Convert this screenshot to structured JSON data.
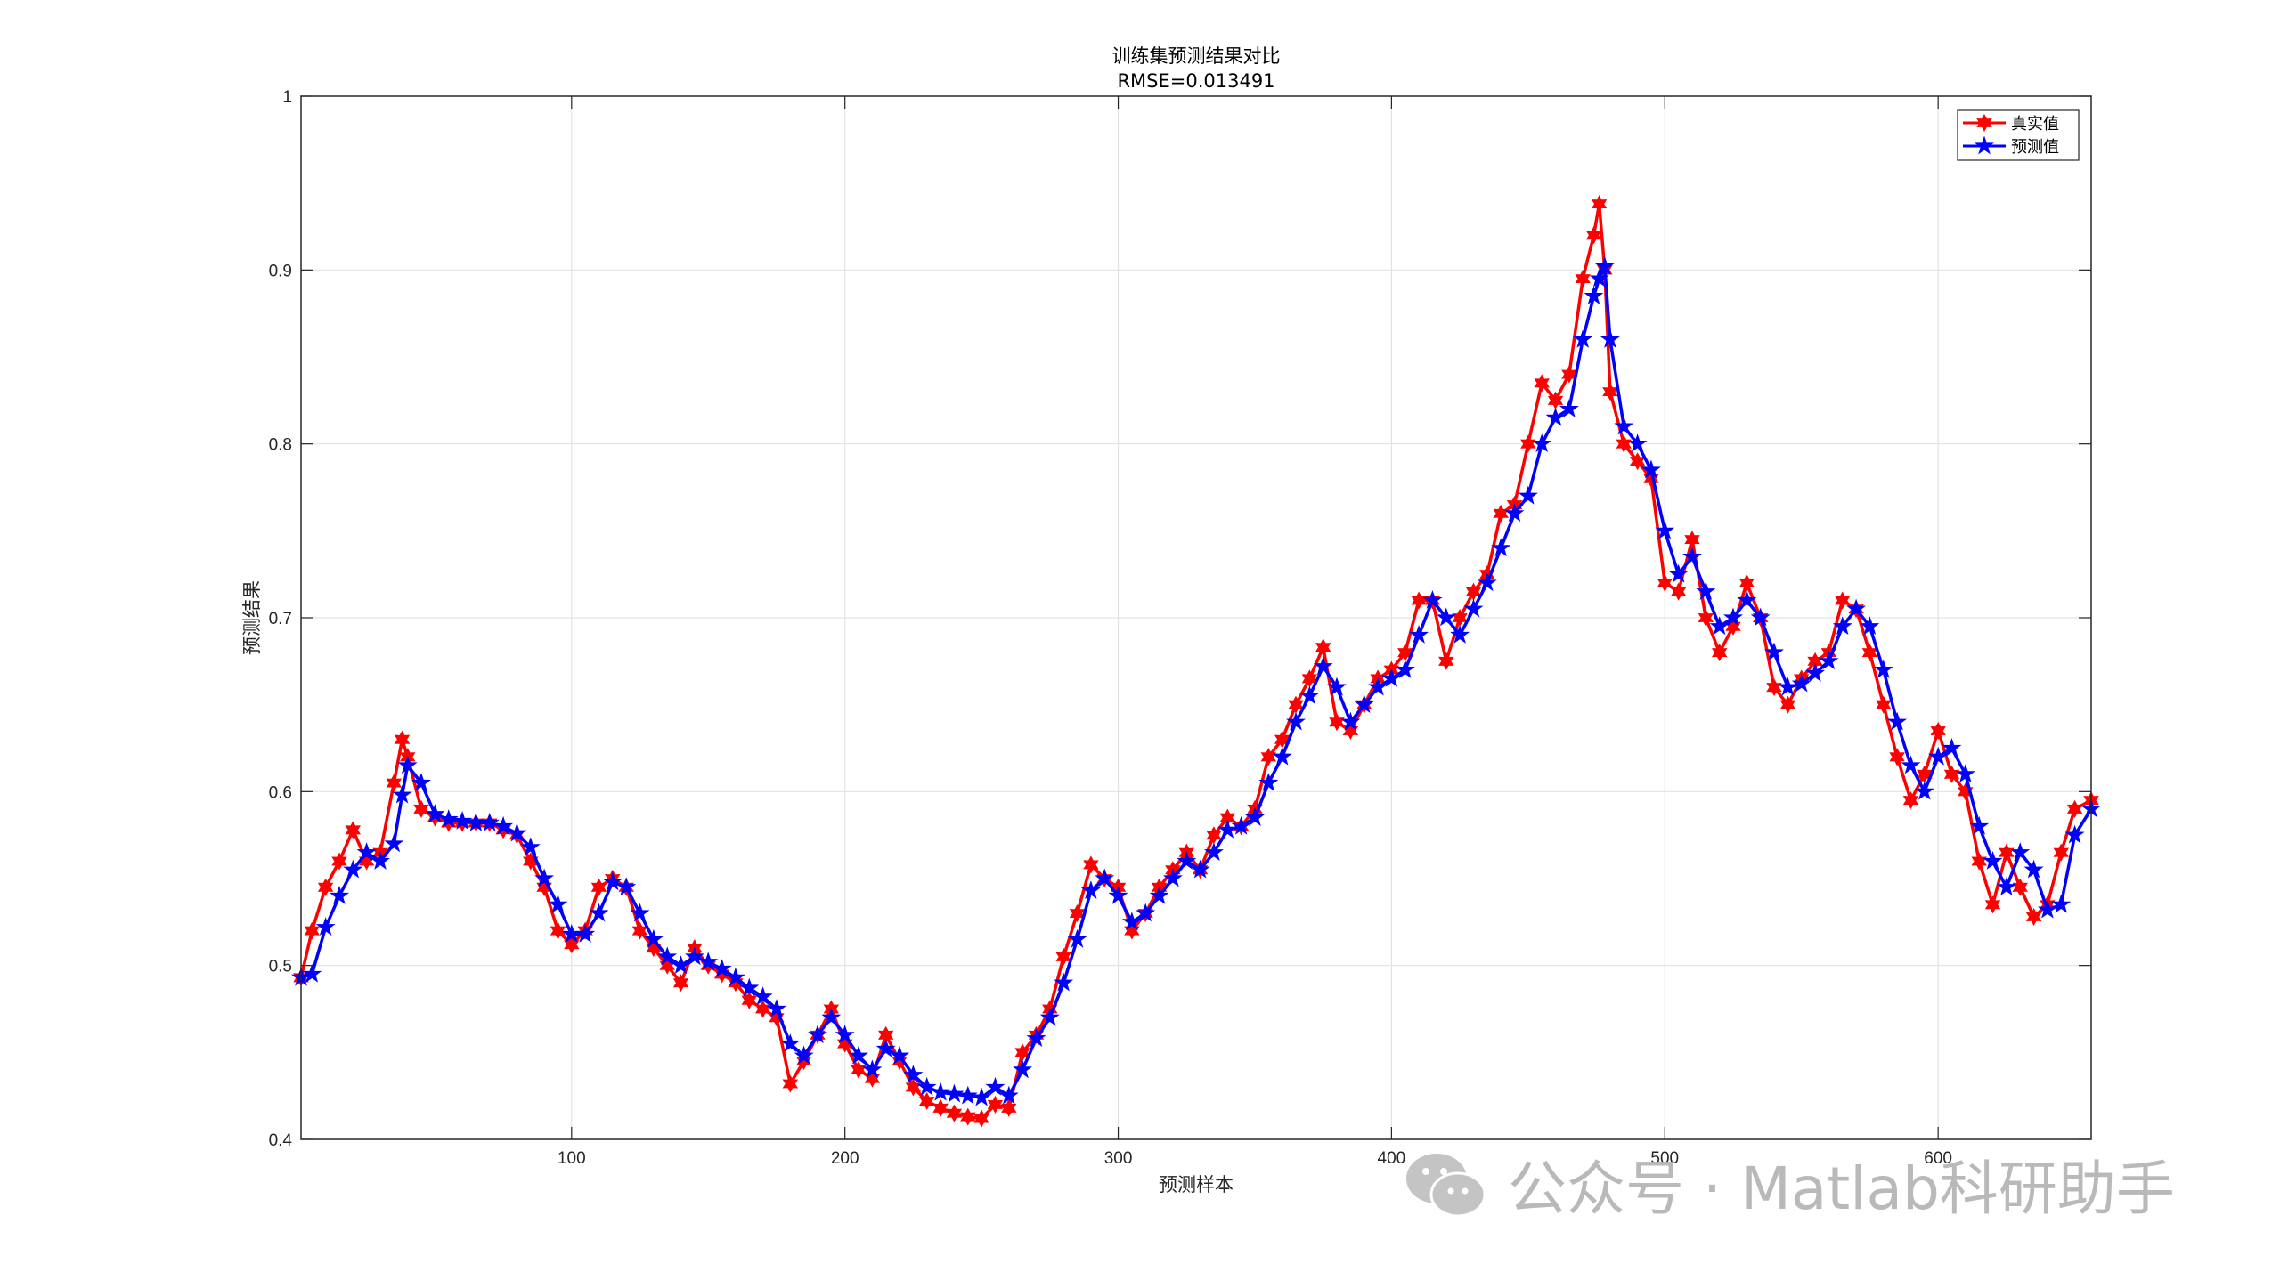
{
  "chart_data": {
    "type": "line",
    "title": "训练集预测结果对比",
    "subtitle": "RMSE=0.013491",
    "xlabel": "预测样本",
    "ylabel": "预测结果",
    "xlim": [
      1,
      656
    ],
    "ylim": [
      0.4,
      1.0
    ],
    "xticks": [
      100,
      200,
      300,
      400,
      500,
      600
    ],
    "yticks": [
      0.4,
      0.5,
      0.6,
      0.7,
      0.8,
      0.9,
      1.0
    ],
    "ytick_labels": [
      "0.4",
      "0.5",
      "0.6",
      "0.7",
      "0.8",
      "0.9",
      "1"
    ],
    "grid": true,
    "legend_position": "top-right",
    "series": [
      {
        "name": "真实值",
        "color": "#ff0000",
        "marker": "hexagram",
        "x": [
          1,
          5,
          10,
          15,
          20,
          25,
          30,
          35,
          38,
          40,
          45,
          50,
          55,
          60,
          65,
          70,
          75,
          80,
          85,
          90,
          95,
          100,
          105,
          110,
          115,
          120,
          125,
          130,
          135,
          140,
          145,
          150,
          155,
          160,
          165,
          170,
          175,
          180,
          185,
          190,
          195,
          200,
          205,
          210,
          215,
          220,
          225,
          230,
          235,
          240,
          245,
          250,
          255,
          260,
          265,
          270,
          275,
          280,
          285,
          290,
          295,
          300,
          305,
          310,
          315,
          320,
          325,
          330,
          335,
          340,
          345,
          350,
          355,
          360,
          365,
          370,
          375,
          380,
          385,
          390,
          395,
          400,
          405,
          410,
          415,
          420,
          425,
          430,
          435,
          440,
          445,
          450,
          455,
          460,
          465,
          470,
          474,
          476,
          478,
          480,
          485,
          490,
          495,
          500,
          505,
          510,
          515,
          520,
          525,
          530,
          535,
          540,
          545,
          550,
          555,
          560,
          565,
          570,
          575,
          580,
          585,
          590,
          595,
          600,
          605,
          610,
          615,
          620,
          625,
          630,
          635,
          640,
          645,
          650,
          656
        ],
        "y": [
          0.493,
          0.52,
          0.545,
          0.56,
          0.578,
          0.56,
          0.565,
          0.605,
          0.63,
          0.62,
          0.59,
          0.585,
          0.582,
          0.582,
          0.582,
          0.582,
          0.578,
          0.575,
          0.56,
          0.545,
          0.52,
          0.512,
          0.52,
          0.545,
          0.55,
          0.545,
          0.52,
          0.51,
          0.5,
          0.49,
          0.51,
          0.5,
          0.495,
          0.49,
          0.48,
          0.475,
          0.47,
          0.432,
          0.445,
          0.46,
          0.475,
          0.455,
          0.44,
          0.435,
          0.46,
          0.445,
          0.43,
          0.422,
          0.418,
          0.415,
          0.413,
          0.412,
          0.42,
          0.418,
          0.45,
          0.46,
          0.475,
          0.505,
          0.53,
          0.558,
          0.55,
          0.545,
          0.52,
          0.53,
          0.545,
          0.555,
          0.565,
          0.555,
          0.575,
          0.585,
          0.58,
          0.59,
          0.62,
          0.63,
          0.65,
          0.665,
          0.683,
          0.64,
          0.635,
          0.65,
          0.665,
          0.67,
          0.68,
          0.71,
          0.71,
          0.675,
          0.7,
          0.715,
          0.725,
          0.76,
          0.765,
          0.8,
          0.835,
          0.825,
          0.84,
          0.895,
          0.92,
          0.938,
          0.9,
          0.83,
          0.8,
          0.79,
          0.78,
          0.72,
          0.715,
          0.745,
          0.7,
          0.68,
          0.695,
          0.72,
          0.7,
          0.66,
          0.65,
          0.665,
          0.675,
          0.68,
          0.71,
          0.705,
          0.68,
          0.65,
          0.62,
          0.595,
          0.61,
          0.635,
          0.61,
          0.6,
          0.56,
          0.535,
          0.565,
          0.545,
          0.528,
          0.535,
          0.565,
          0.59,
          0.595
        ]
      },
      {
        "name": "预测值",
        "color": "#0000ff",
        "marker": "pentagram",
        "x": [
          1,
          5,
          10,
          15,
          20,
          25,
          30,
          35,
          38,
          40,
          45,
          50,
          55,
          60,
          65,
          70,
          75,
          80,
          85,
          90,
          95,
          100,
          105,
          110,
          115,
          120,
          125,
          130,
          135,
          140,
          145,
          150,
          155,
          160,
          165,
          170,
          175,
          180,
          185,
          190,
          195,
          200,
          205,
          210,
          215,
          220,
          225,
          230,
          235,
          240,
          245,
          250,
          255,
          260,
          265,
          270,
          275,
          280,
          285,
          290,
          295,
          300,
          305,
          310,
          315,
          320,
          325,
          330,
          335,
          340,
          345,
          350,
          355,
          360,
          365,
          370,
          375,
          380,
          385,
          390,
          395,
          400,
          405,
          410,
          415,
          420,
          425,
          430,
          435,
          440,
          445,
          450,
          455,
          460,
          465,
          470,
          474,
          476,
          478,
          480,
          485,
          490,
          495,
          500,
          505,
          510,
          515,
          520,
          525,
          530,
          535,
          540,
          545,
          550,
          555,
          560,
          565,
          570,
          575,
          580,
          585,
          590,
          595,
          600,
          605,
          610,
          615,
          620,
          625,
          630,
          635,
          640,
          645,
          650,
          656
        ],
        "y": [
          0.493,
          0.495,
          0.522,
          0.54,
          0.555,
          0.565,
          0.56,
          0.57,
          0.598,
          0.615,
          0.605,
          0.587,
          0.584,
          0.583,
          0.582,
          0.582,
          0.58,
          0.576,
          0.568,
          0.55,
          0.535,
          0.518,
          0.518,
          0.53,
          0.548,
          0.545,
          0.53,
          0.515,
          0.505,
          0.5,
          0.505,
          0.502,
          0.498,
          0.493,
          0.487,
          0.482,
          0.475,
          0.455,
          0.448,
          0.46,
          0.47,
          0.46,
          0.448,
          0.44,
          0.452,
          0.448,
          0.437,
          0.43,
          0.427,
          0.426,
          0.425,
          0.424,
          0.43,
          0.425,
          0.44,
          0.458,
          0.47,
          0.49,
          0.515,
          0.543,
          0.55,
          0.54,
          0.525,
          0.53,
          0.54,
          0.55,
          0.56,
          0.555,
          0.565,
          0.578,
          0.58,
          0.585,
          0.605,
          0.62,
          0.64,
          0.655,
          0.672,
          0.66,
          0.64,
          0.65,
          0.66,
          0.665,
          0.67,
          0.69,
          0.71,
          0.7,
          0.69,
          0.705,
          0.72,
          0.74,
          0.76,
          0.77,
          0.8,
          0.815,
          0.82,
          0.86,
          0.885,
          0.895,
          0.902,
          0.86,
          0.81,
          0.8,
          0.785,
          0.75,
          0.725,
          0.735,
          0.715,
          0.695,
          0.7,
          0.71,
          0.7,
          0.68,
          0.66,
          0.662,
          0.668,
          0.675,
          0.695,
          0.705,
          0.695,
          0.67,
          0.64,
          0.615,
          0.6,
          0.62,
          0.625,
          0.61,
          0.58,
          0.56,
          0.545,
          0.565,
          0.555,
          0.532,
          0.535,
          0.575,
          0.59
        ]
      }
    ]
  },
  "watermark": {
    "text": "公众号 · Matlab科研助手",
    "icon": "wechat-icon"
  }
}
